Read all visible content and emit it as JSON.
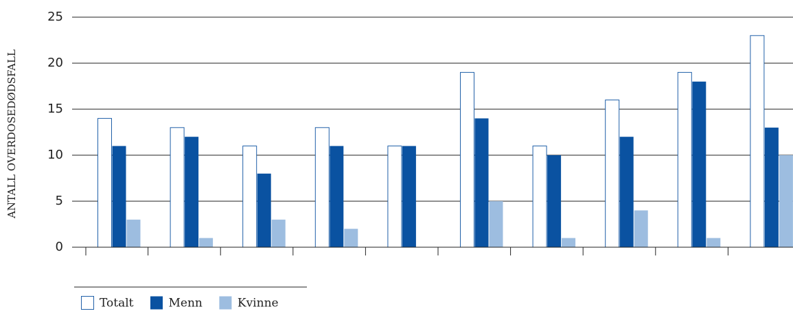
{
  "chart_data": {
    "type": "bar",
    "y_label": "ANTALL OVERDOSEDØDSFALL",
    "categories": [
      null,
      null,
      null,
      null,
      null,
      null,
      null,
      null,
      null,
      null
    ],
    "series": [
      {
        "name": "Totalt",
        "color": "#ffffff",
        "values": [
          14,
          13,
          11,
          13,
          11,
          19,
          11,
          16,
          19,
          23
        ]
      },
      {
        "name": "Menn",
        "color": "#0a52a1",
        "values": [
          11,
          12,
          8,
          11,
          11,
          14,
          10,
          12,
          18,
          13
        ]
      },
      {
        "name": "Kvinne",
        "color": "#9dbde0",
        "values": [
          3,
          1,
          3,
          2,
          0,
          5,
          1,
          4,
          1,
          10
        ]
      }
    ],
    "ylim": [
      0,
      25
    ],
    "yticks": [
      0,
      5,
      10,
      15,
      20,
      25
    ],
    "grid": true
  }
}
